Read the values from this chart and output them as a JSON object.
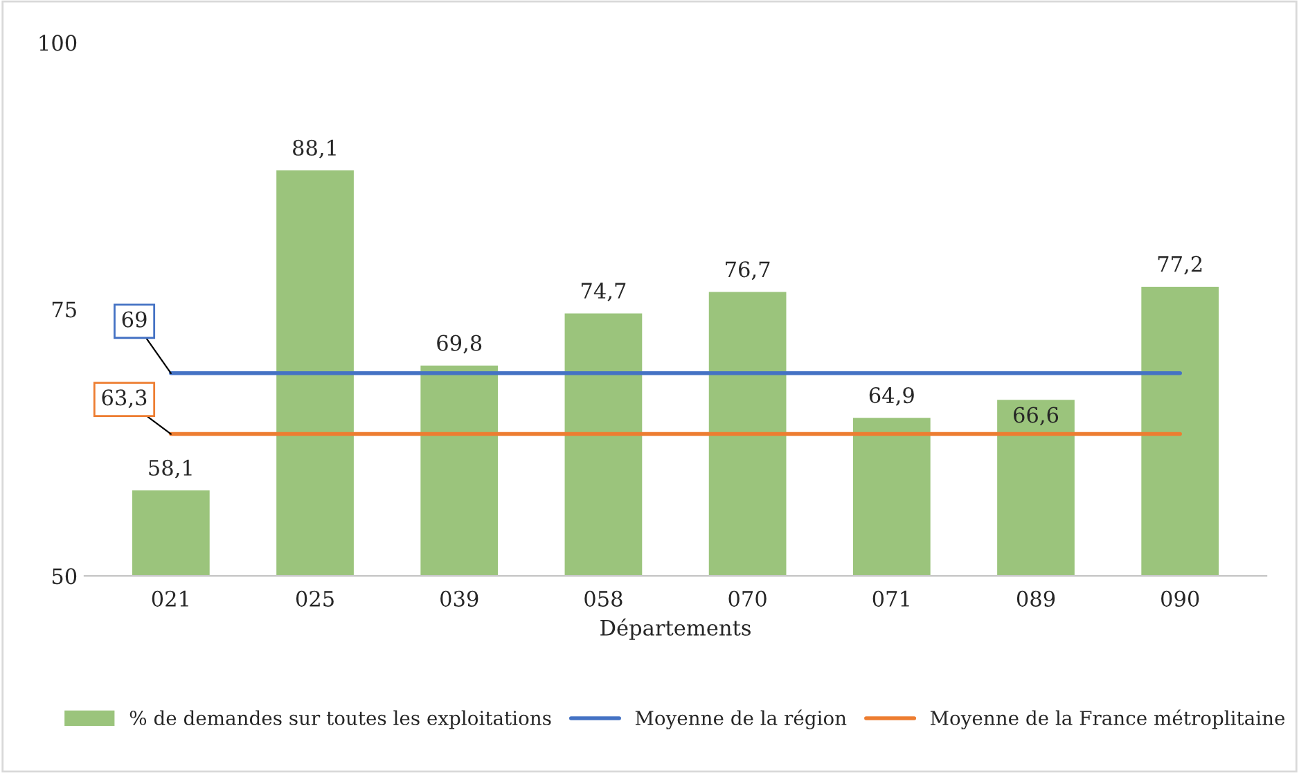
{
  "chart_data": {
    "type": "bar",
    "xlabel": "Départements",
    "categories": [
      "021",
      "025",
      "039",
      "058",
      "070",
      "071",
      "089",
      "090"
    ],
    "series": [
      {
        "name": "% de demandes sur toutes les exploitations",
        "color": "#9bc47c",
        "values": [
          58.1,
          88.1,
          69.8,
          74.7,
          76.7,
          64.9,
          66.6,
          77.2
        ],
        "value_labels": [
          "58,1",
          "88,1",
          "69,8",
          "74,7",
          "76,7",
          "64,9",
          "66,6",
          "77,2"
        ]
      },
      {
        "name": "Moyenne de la région",
        "type": "line",
        "color": "#4472c4",
        "values": [
          69,
          69,
          69,
          69,
          69,
          69,
          69,
          69
        ],
        "value_labels": [
          "69",
          null,
          null,
          null,
          null,
          null,
          null,
          null
        ]
      },
      {
        "name": "Moyenne de la France métroplitaine",
        "type": "line",
        "color": "#ed7d31",
        "values": [
          63.3,
          63.3,
          63.3,
          63.3,
          63.3,
          63.3,
          63.3,
          63.3
        ],
        "value_labels": [
          "63,3",
          null,
          null,
          null,
          null,
          null,
          null,
          null
        ]
      }
    ],
    "ylim": [
      50,
      100
    ],
    "yticks": [
      50,
      75,
      100
    ],
    "grid": false,
    "legend": "bottom"
  }
}
